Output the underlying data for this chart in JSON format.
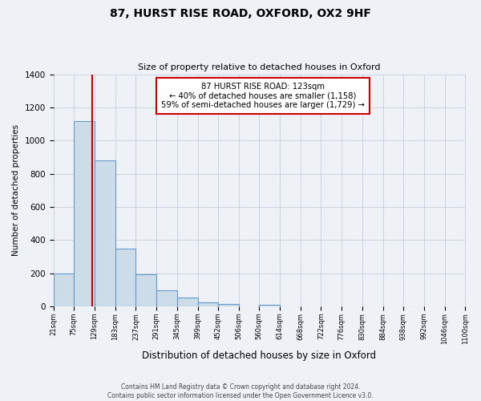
{
  "title": "87, HURST RISE ROAD, OXFORD, OX2 9HF",
  "subtitle": "Size of property relative to detached houses in Oxford",
  "xlabel": "Distribution of detached houses by size in Oxford",
  "ylabel": "Number of detached properties",
  "bin_labels": [
    "21sqm",
    "75sqm",
    "129sqm",
    "183sqm",
    "237sqm",
    "291sqm",
    "345sqm",
    "399sqm",
    "452sqm",
    "506sqm",
    "560sqm",
    "614sqm",
    "668sqm",
    "722sqm",
    "776sqm",
    "830sqm",
    "884sqm",
    "938sqm",
    "992sqm",
    "1046sqm",
    "1100sqm"
  ],
  "bin_edges": [
    21,
    75,
    129,
    183,
    237,
    291,
    345,
    399,
    452,
    506,
    560,
    614,
    668,
    722,
    776,
    830,
    884,
    938,
    992,
    1046,
    1100
  ],
  "bar_heights": [
    200,
    1115,
    880,
    350,
    195,
    97,
    55,
    22,
    15,
    0,
    10,
    0,
    0,
    0,
    0,
    0,
    0,
    0,
    0,
    0
  ],
  "bar_color": "#ccdce8",
  "bar_edge_color": "#6699cc",
  "property_size": 123,
  "vline_color": "#cc0000",
  "annotation_text": "87 HURST RISE ROAD: 123sqm\n← 40% of detached houses are smaller (1,158)\n59% of semi-detached houses are larger (1,729) →",
  "annotation_box_color": "#ffffff",
  "annotation_box_edge_color": "#cc0000",
  "ylim": [
    0,
    1400
  ],
  "yticks": [
    0,
    200,
    400,
    600,
    800,
    1000,
    1200,
    1400
  ],
  "footer_line1": "Contains HM Land Registry data © Crown copyright and database right 2024.",
  "footer_line2": "Contains public sector information licensed under the Open Government Licence v3.0.",
  "background_color": "#eef2f7",
  "plot_bg_color": "#eef2f7",
  "grid_color": "#c8d4e0"
}
